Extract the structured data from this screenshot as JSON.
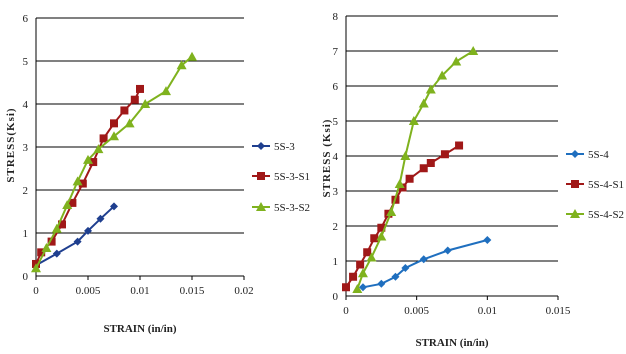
{
  "chart_data": [
    {
      "type": "line",
      "xlabel": "STRAIN (in/in)",
      "ylabel": "STRESS(Ksi)",
      "xlim": [
        0,
        0.02
      ],
      "ylim": [
        0,
        6
      ],
      "xticks": [
        "0",
        "0.005",
        "0.01",
        "0.015",
        "0.02"
      ],
      "yticks": [
        "0",
        "1",
        "2",
        "3",
        "4",
        "5",
        "6"
      ],
      "grid": "horizontal",
      "legend": "right",
      "series": [
        {
          "name": "5S-3",
          "color": "#1f3f8f",
          "marker": "diamond",
          "points": [
            [
              0.0,
              0.25
            ],
            [
              0.002,
              0.52
            ],
            [
              0.004,
              0.8
            ],
            [
              0.005,
              1.05
            ],
            [
              0.0062,
              1.33
            ],
            [
              0.0075,
              1.62
            ]
          ]
        },
        {
          "name": "5S-3-S1",
          "color": "#a01818",
          "marker": "square",
          "points": [
            [
              0.0,
              0.28
            ],
            [
              0.0005,
              0.55
            ],
            [
              0.0015,
              0.8
            ],
            [
              0.0025,
              1.2
            ],
            [
              0.0035,
              1.7
            ],
            [
              0.0045,
              2.15
            ],
            [
              0.0055,
              2.65
            ],
            [
              0.0065,
              3.2
            ],
            [
              0.0075,
              3.55
            ],
            [
              0.0085,
              3.85
            ],
            [
              0.0095,
              4.1
            ],
            [
              0.01,
              4.35
            ]
          ]
        },
        {
          "name": "5S-3-S2",
          "color": "#7fb21e",
          "marker": "triangle",
          "points": [
            [
              0.0,
              0.18
            ],
            [
              0.001,
              0.65
            ],
            [
              0.002,
              1.1
            ],
            [
              0.003,
              1.65
            ],
            [
              0.004,
              2.2
            ],
            [
              0.005,
              2.7
            ],
            [
              0.006,
              2.95
            ],
            [
              0.0075,
              3.25
            ],
            [
              0.009,
              3.55
            ],
            [
              0.0105,
              4.0
            ],
            [
              0.0125,
              4.3
            ],
            [
              0.014,
              4.9
            ],
            [
              0.015,
              5.1
            ]
          ]
        }
      ]
    },
    {
      "type": "line",
      "xlabel": "STRAIN (in/in)",
      "ylabel": "STRESS (Ksi)",
      "xlim": [
        0,
        0.015
      ],
      "ylim": [
        0,
        8
      ],
      "xticks": [
        "0",
        "0.005",
        "0.01",
        "0.015"
      ],
      "yticks": [
        "0",
        "1",
        "2",
        "3",
        "4",
        "5",
        "6",
        "7",
        "8"
      ],
      "grid": "horizontal",
      "legend": "right",
      "series": [
        {
          "name": "5S-4",
          "color": "#1f6fbf",
          "marker": "diamond",
          "points": [
            [
              0.0012,
              0.25
            ],
            [
              0.0025,
              0.35
            ],
            [
              0.0035,
              0.55
            ],
            [
              0.0042,
              0.8
            ],
            [
              0.0055,
              1.05
            ],
            [
              0.0072,
              1.3
            ],
            [
              0.01,
              1.6
            ]
          ]
        },
        {
          "name": "5S-4-S1",
          "color": "#a01818",
          "marker": "square",
          "points": [
            [
              0.0,
              0.25
            ],
            [
              0.0005,
              0.55
            ],
            [
              0.001,
              0.9
            ],
            [
              0.0015,
              1.25
            ],
            [
              0.002,
              1.65
            ],
            [
              0.0025,
              1.95
            ],
            [
              0.003,
              2.35
            ],
            [
              0.0035,
              2.75
            ],
            [
              0.004,
              3.1
            ],
            [
              0.0045,
              3.35
            ],
            [
              0.0055,
              3.65
            ],
            [
              0.006,
              3.8
            ],
            [
              0.007,
              4.05
            ],
            [
              0.008,
              4.3
            ]
          ]
        },
        {
          "name": "5S-4-S2",
          "color": "#7fb21e",
          "marker": "triangle",
          "points": [
            [
              0.0008,
              0.2
            ],
            [
              0.0012,
              0.65
            ],
            [
              0.0018,
              1.1
            ],
            [
              0.0025,
              1.7
            ],
            [
              0.0032,
              2.4
            ],
            [
              0.0038,
              3.2
            ],
            [
              0.0042,
              4.0
            ],
            [
              0.0048,
              5.0
            ],
            [
              0.0055,
              5.5
            ],
            [
              0.006,
              5.9
            ],
            [
              0.0068,
              6.3
            ],
            [
              0.0078,
              6.7
            ],
            [
              0.009,
              7.0
            ]
          ]
        }
      ]
    }
  ]
}
